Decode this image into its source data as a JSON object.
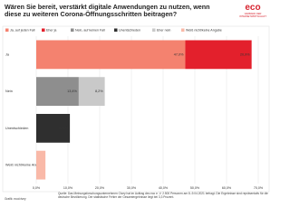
{
  "chart_data": {
    "type": "stacked-bar-horizontal",
    "title": "Wären Sie bereit, verstärkt digitale Anwendungen zu nutzen, wenn diese zu weiteren Corona-Öffnungsschritten beitragen?",
    "logo": "eco",
    "logo_subtitle": "VERBAND DER INTERNETWIRTSCHAFT",
    "categories": [
      "Ja",
      "Nein",
      "Unentschieden",
      "Weiß nicht/keine Angabe"
    ],
    "series": [
      {
        "name": "Ja, auf jeden Fall",
        "color": "#f4826f",
        "values": [
          47.0,
          null,
          null,
          null
        ],
        "value_labels": [
          "47,0%",
          null,
          null,
          null
        ]
      },
      {
        "name": "Eher ja",
        "color": "#e3202c",
        "values": [
          20.9,
          null,
          null,
          null
        ],
        "value_labels": [
          "20,9%",
          null,
          null,
          null
        ]
      },
      {
        "name": "Nein, auf keinen Fall",
        "color": "#8e8e8e",
        "values": [
          null,
          13.4,
          null,
          null
        ],
        "value_labels": [
          null,
          "13,4%",
          null,
          null
        ]
      },
      {
        "name": "Unentschieden",
        "color": "#2f2f2f",
        "values": [
          null,
          null,
          10.6,
          null
        ],
        "value_labels": [
          null,
          null,
          "10,6%",
          null
        ]
      },
      {
        "name": "Eher nein",
        "color": "#c9c9c9",
        "values": [
          null,
          8.2,
          null,
          null
        ],
        "value_labels": [
          null,
          "8,2%",
          null,
          null
        ]
      },
      {
        "name": "Weiß nicht/keine Angabe",
        "color": "#f9b9a8",
        "values": [
          null,
          null,
          null,
          2.9
        ]
      }
    ],
    "xlim": [
      0,
      72
    ],
    "xticks": [
      {
        "value": 0,
        "label": "0,0%"
      },
      {
        "value": 10,
        "label": "10,0%"
      },
      {
        "value": 20,
        "label": "20,0%"
      },
      {
        "value": 30,
        "label": "30,0%"
      },
      {
        "value": 40,
        "label": "40,0%"
      },
      {
        "value": 50,
        "label": "50,0%"
      },
      {
        "value": 60,
        "label": "60,0%"
      },
      {
        "value": 70,
        "label": "70,0%"
      }
    ],
    "grid": true,
    "source": "Quelle: Das Meinungsforschungsunternehmen Civey hat im Auftrag des eco e. V. 2.500 Personen am 8.-9.04.2021 befragt. Die Ergebnisse sind repräsentativ für die deutsche Bevölkerung. Der statistische Fehler der Gesamtergebnisse liegt bei 3,3 Prozent.",
    "credit": "Grafik: eco/civey"
  }
}
